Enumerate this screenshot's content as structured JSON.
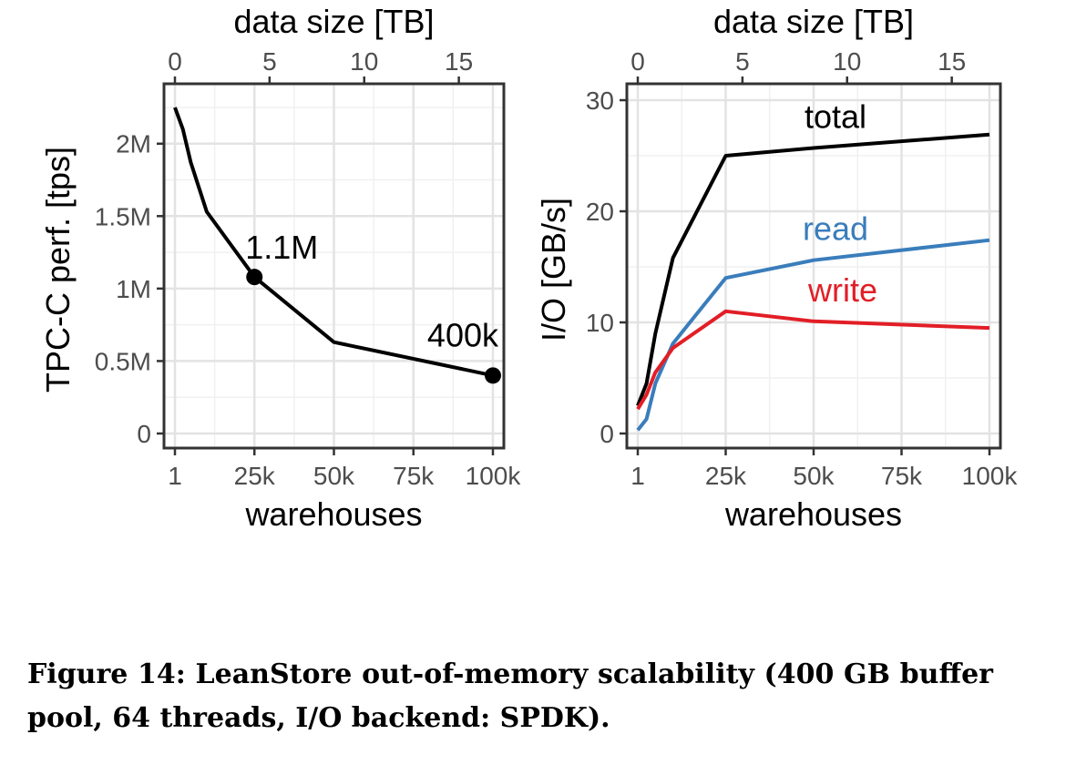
{
  "chart_data": [
    {
      "type": "line",
      "xlabel": "warehouses",
      "x2label": "data size [TB]",
      "ylabel": "TPC-C perf. [tps]",
      "x_ticks": [
        "1",
        "25k",
        "50k",
        "75k",
        "100k"
      ],
      "x_tick_values": [
        1,
        25000,
        50000,
        75000,
        100000
      ],
      "x2_ticks": [
        "0",
        "5",
        "10",
        "15"
      ],
      "x2_tick_values": [
        0,
        5,
        10,
        15
      ],
      "x2_range": [
        0,
        16.8
      ],
      "y_ticks": [
        "0",
        "0.5M",
        "1M",
        "1.5M",
        "2M"
      ],
      "y_tick_values": [
        0,
        500000,
        1000000,
        1500000,
        2000000
      ],
      "xlim": [
        1,
        100000
      ],
      "ylim": [
        0,
        2300000
      ],
      "grid": true,
      "series": [
        {
          "color": "#000000",
          "x": [
            1,
            2500,
            5000,
            10000,
            25000,
            50000,
            100000
          ],
          "y": [
            2250000,
            2100000,
            1870000,
            1530000,
            1080000,
            630000,
            400000
          ]
        }
      ],
      "annotations": [
        {
          "text": "1.1M",
          "x": 25000,
          "y": 1080000
        },
        {
          "text": "400k",
          "x": 100000,
          "y": 400000
        }
      ]
    },
    {
      "type": "line",
      "xlabel": "warehouses",
      "x2label": "data size [TB]",
      "ylabel": "I/O [GB/s]",
      "x_ticks": [
        "1",
        "25k",
        "50k",
        "75k",
        "100k"
      ],
      "x_tick_values": [
        1,
        25000,
        50000,
        75000,
        100000
      ],
      "x2_ticks": [
        "0",
        "5",
        "10",
        "15"
      ],
      "x2_tick_values": [
        0,
        5,
        10,
        15
      ],
      "x2_range": [
        0,
        16.8
      ],
      "y_ticks": [
        "0",
        "10",
        "20",
        "30"
      ],
      "y_tick_values": [
        0,
        10,
        20,
        30
      ],
      "xlim": [
        1,
        100000
      ],
      "ylim": [
        0,
        30
      ],
      "grid": true,
      "series": [
        {
          "name": "total",
          "color": "#000000",
          "x": [
            1,
            2500,
            5000,
            10000,
            25000,
            50000,
            100000
          ],
          "y": [
            2.5,
            4.5,
            9.0,
            15.8,
            25.0,
            25.7,
            26.9
          ]
        },
        {
          "name": "read",
          "color": "#3a7dbb",
          "x": [
            1,
            2500,
            5000,
            10000,
            25000,
            50000,
            100000
          ],
          "y": [
            0.3,
            1.3,
            4.5,
            8.1,
            14.0,
            15.6,
            17.4
          ]
        },
        {
          "name": "write",
          "color": "#e21e26",
          "x": [
            1,
            2500,
            5000,
            10000,
            25000,
            50000,
            100000
          ],
          "y": [
            2.2,
            3.5,
            5.5,
            7.7,
            11.0,
            10.1,
            9.5
          ]
        }
      ]
    }
  ],
  "caption": "Figure 14: LeanStore out-of-memory scalability (400 GB buffer pool, 64 threads, I/O backend: SPDK)."
}
